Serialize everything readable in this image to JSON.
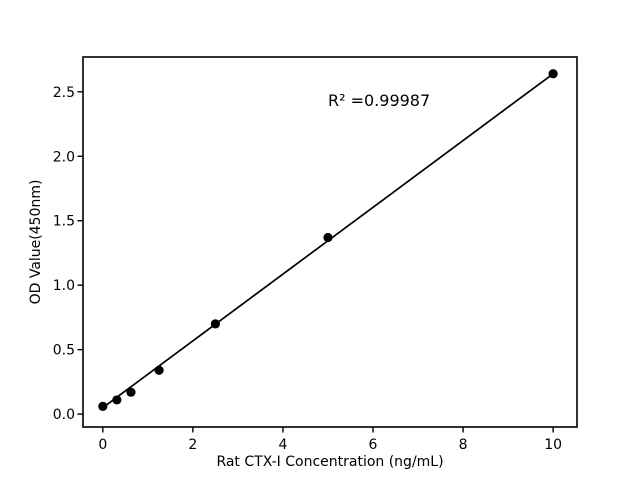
{
  "figure": {
    "background": "#ffffff",
    "foreground": "#000000"
  },
  "chart_data": {
    "type": "scatter",
    "title": "",
    "xlabel": "Rat CTX-I Concentration (ng/mL)",
    "ylabel": "OD Value(450nm)",
    "x": [
      0,
      0.3125,
      0.625,
      1.25,
      2.5,
      5,
      10
    ],
    "y": [
      0.06,
      0.11,
      0.17,
      0.34,
      0.7,
      1.37,
      2.64
    ],
    "fit_line": {
      "x": [
        0,
        10
      ],
      "y": [
        0.05,
        2.64
      ]
    },
    "annotation": {
      "text": "R² =0.99987",
      "x": 5.0,
      "y": 2.39
    },
    "xticks": {
      "values": [
        0,
        2,
        4,
        6,
        8,
        10
      ],
      "labels": [
        "0",
        "2",
        "4",
        "6",
        "8",
        "10"
      ]
    },
    "yticks": {
      "values": [
        0,
        0.5,
        1.0,
        1.5,
        2.0,
        2.5
      ],
      "labels": [
        "0.0",
        "0.5",
        "1.0",
        "1.5",
        "2.0",
        "2.5"
      ]
    },
    "xlim": [
      -0.44,
      10.53
    ],
    "ylim": [
      -0.1,
      2.77
    ],
    "grid": false,
    "legend": null,
    "marker_color": "#000000",
    "marker_radius_px": 4.6,
    "line_color": "#000000",
    "axis_color": "#000000"
  }
}
